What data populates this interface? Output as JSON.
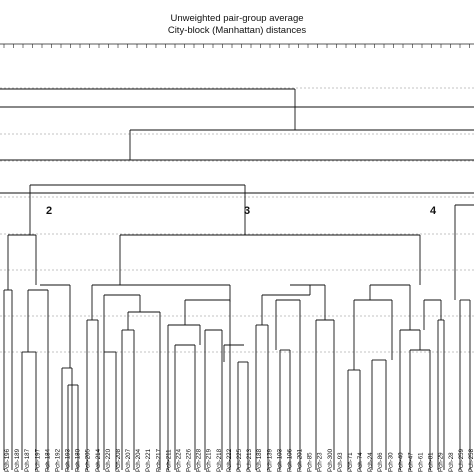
{
  "title_line_1": "Unweighted pair-group average",
  "title_line_2": "City-block (Manhattan) distances",
  "clusters": [
    {
      "label": "2"
    },
    {
      "label": "3"
    },
    {
      "label": "4"
    }
  ],
  "leaves": [
    "Pch-196",
    "Pch-189",
    "Pch-187",
    "Pch-197",
    "Pch-184",
    "Pch-192",
    "Pch-193",
    "Pch-180",
    "Pch-205",
    "Pch-214",
    "Pch-220",
    "Pch-208",
    "Pch-207",
    "Pch-204",
    "Pch-221",
    "Pch-217",
    "Pch-211",
    "Pch-224",
    "Pch-226",
    "Pch-228",
    "Pch-219",
    "Pch-218",
    "Pch-222",
    "Pch-225",
    "Pch-213",
    "Pch-188",
    "Pch-139",
    "Pch-103",
    "Pch-106",
    "Pch-201",
    "Pch-85",
    "Pch-23",
    "Pch-300",
    "Pch-93",
    "Pch-71",
    "Pch-74",
    "Pch-24",
    "Pch-86",
    "Pch-30",
    "Pch-40",
    "Pch-47",
    "Pch-61",
    "Pch-81",
    "Pch-29",
    "Pch-28",
    "Pch-259",
    "Pch-258"
  ]
}
